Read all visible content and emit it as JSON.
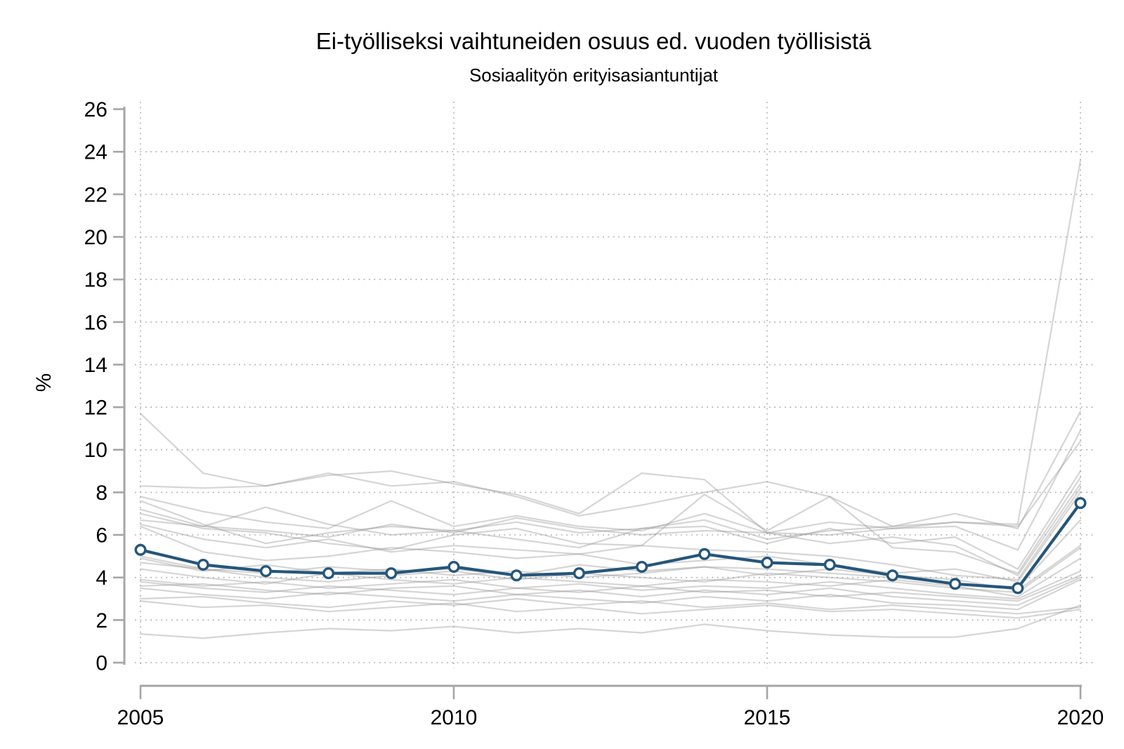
{
  "title": "Ei-työlliseksi vaihtuneiden osuus ed. vuoden työllisistä",
  "subtitle": "Sosiaalityön erityisasiantuntijat",
  "chart_data": {
    "type": "line",
    "x": [
      2005,
      2006,
      2007,
      2008,
      2009,
      2010,
      2011,
      2012,
      2013,
      2014,
      2015,
      2016,
      2017,
      2018,
      2019,
      2020
    ],
    "xticks": [
      2005,
      2010,
      2015,
      2020
    ],
    "ylabel": "%",
    "ylim": [
      0,
      26
    ],
    "ytick_step": 2,
    "grid": true,
    "legend": "none",
    "colors": {
      "main_line": "#25567a",
      "marker_fill": "#ffffff",
      "background_lines": "#9a9a9a",
      "axis": "#a6a6a6",
      "grid_dots": "#adadad",
      "text": "#000000"
    },
    "main_series": {
      "label": "Sosiaalityön erityisasiantuntijat",
      "values": [
        5.3,
        4.6,
        4.3,
        4.2,
        4.2,
        4.5,
        4.1,
        4.2,
        4.5,
        5.1,
        4.7,
        4.6,
        4.1,
        3.7,
        3.5,
        7.5
      ]
    },
    "background_series": [
      {
        "values": [
          11.7,
          8.9,
          8.3,
          8.8,
          9.0,
          8.4,
          7.9,
          7.0,
          8.9,
          8.6,
          6.1,
          6.6,
          6.3,
          6.6,
          6.5,
          23.6
        ]
      },
      {
        "values": [
          8.3,
          8.2,
          8.3,
          8.9,
          8.3,
          8.5,
          7.8,
          6.9,
          7.4,
          8.0,
          8.5,
          7.8,
          6.4,
          7.0,
          6.3,
          11.8
        ]
      },
      {
        "values": [
          7.8,
          7.1,
          6.6,
          6.3,
          7.6,
          6.4,
          6.9,
          6.4,
          6.2,
          7.0,
          6.1,
          6.0,
          6.3,
          6.4,
          5.3,
          10.9
        ]
      },
      {
        "values": [
          7.6,
          6.5,
          5.6,
          6.1,
          6.4,
          6.2,
          6.6,
          6.1,
          6.3,
          6.7,
          5.8,
          6.2,
          6.4,
          6.6,
          6.4,
          10.4
        ]
      },
      {
        "values": [
          7.2,
          6.4,
          7.3,
          6.5,
          6.0,
          6.2,
          5.8,
          5.4,
          6.3,
          6.4,
          5.6,
          6.3,
          5.6,
          5.9,
          4.4,
          9.0
        ]
      },
      {
        "values": [
          7.0,
          6.3,
          6.1,
          5.6,
          5.3,
          6.0,
          6.3,
          5.6,
          5.5,
          7.9,
          6.2,
          7.8,
          5.4,
          5.2,
          4.2,
          8.7
        ]
      },
      {
        "values": [
          6.7,
          6.4,
          6.2,
          5.9,
          6.5,
          6.1,
          6.8,
          6.3,
          6.0,
          6.2,
          6.1,
          5.6,
          5.9,
          5.5,
          4.1,
          8.4
        ]
      },
      {
        "values": [
          6.5,
          5.8,
          5.4,
          5.8,
          5.2,
          5.5,
          5.3,
          5.1,
          5.5,
          5.3,
          5.2,
          5.0,
          4.6,
          4.1,
          3.9,
          8.2
        ]
      },
      {
        "values": [
          6.4,
          5.2,
          4.8,
          5.0,
          5.4,
          5.2,
          4.9,
          5.1,
          4.6,
          4.8,
          5.0,
          4.6,
          4.2,
          4.4,
          3.8,
          8.0
        ]
      },
      {
        "values": [
          5.0,
          4.4,
          4.2,
          4.5,
          4.3,
          4.4,
          4.1,
          4.6,
          4.3,
          4.5,
          4.4,
          4.2,
          4.0,
          3.7,
          3.5,
          6.7
        ]
      },
      {
        "values": [
          4.9,
          4.3,
          4.6,
          4.2,
          4.4,
          4.1,
          4.3,
          4.0,
          4.2,
          4.5,
          4.1,
          4.4,
          4.1,
          3.9,
          3.4,
          5.5
        ]
      },
      {
        "values": [
          4.7,
          4.4,
          4.0,
          3.8,
          4.1,
          4.3,
          3.9,
          4.2,
          4.0,
          3.8,
          4.2,
          4.0,
          3.8,
          3.5,
          3.3,
          5.4
        ]
      },
      {
        "values": [
          4.4,
          4.0,
          3.7,
          4.2,
          3.9,
          3.7,
          4.0,
          3.8,
          3.6,
          3.9,
          3.8,
          3.6,
          3.9,
          3.6,
          3.1,
          4.9
        ]
      },
      {
        "values": [
          3.9,
          3.6,
          3.8,
          3.5,
          3.7,
          3.9,
          3.5,
          3.7,
          3.4,
          3.6,
          3.5,
          3.8,
          3.5,
          3.2,
          3.0,
          4.3
        ]
      },
      {
        "values": [
          3.8,
          3.5,
          3.3,
          3.6,
          3.4,
          3.2,
          3.5,
          3.3,
          3.6,
          3.3,
          3.4,
          3.1,
          3.3,
          3.1,
          2.9,
          4.1
        ]
      },
      {
        "values": [
          3.6,
          3.7,
          3.4,
          3.2,
          3.5,
          3.6,
          3.2,
          3.4,
          3.1,
          3.4,
          3.2,
          3.5,
          3.1,
          2.9,
          2.7,
          4.0
        ]
      },
      {
        "values": [
          3.5,
          3.2,
          3.0,
          3.3,
          3.1,
          2.9,
          3.2,
          3.0,
          2.8,
          3.1,
          2.9,
          3.2,
          2.8,
          2.7,
          2.5,
          3.9
        ]
      },
      {
        "values": [
          3.0,
          3.1,
          2.8,
          2.6,
          2.9,
          2.7,
          3.0,
          2.7,
          2.9,
          2.6,
          2.8,
          2.5,
          2.7,
          2.5,
          2.3,
          2.6
        ]
      },
      {
        "values": [
          2.9,
          2.6,
          2.7,
          2.4,
          2.6,
          2.8,
          2.4,
          2.6,
          2.3,
          2.5,
          2.7,
          2.4,
          2.5,
          2.3,
          2.1,
          2.5
        ]
      },
      {
        "values": [
          1.35,
          1.15,
          1.4,
          1.6,
          1.5,
          1.7,
          1.4,
          1.6,
          1.4,
          1.8,
          1.5,
          1.3,
          1.2,
          1.2,
          1.6,
          2.7
        ]
      }
    ]
  }
}
